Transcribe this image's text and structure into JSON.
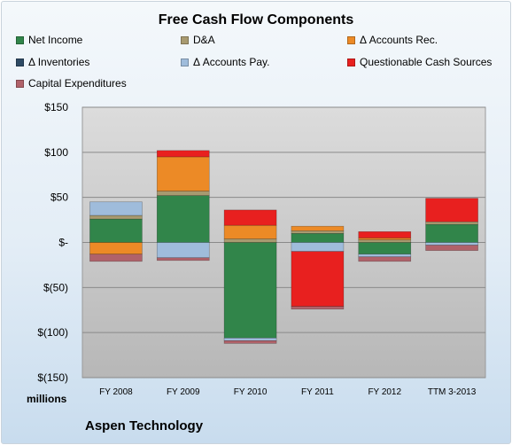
{
  "chart_data": {
    "type": "bar",
    "stacked": true,
    "title": "Free Cash Flow Components",
    "units_label": "millions",
    "company": "Aspen Technology",
    "categories": [
      "FY 2008",
      "FY 2009",
      "FY 2010",
      "FY 2011",
      "FY 2012",
      "TTM 3-2013"
    ],
    "ylim": [
      -150,
      150
    ],
    "yticks": [
      150,
      100,
      50,
      0,
      -50,
      -100,
      -150
    ],
    "ytick_labels": [
      "$150",
      "$100",
      "$50",
      "$-",
      "$(50)",
      "$(100)",
      "$(150)"
    ],
    "grid": true,
    "legend_position": "top",
    "series": [
      {
        "name": "Net Income",
        "color": "#31854a",
        "values": [
          26,
          52,
          -106,
          10,
          -13,
          20
        ]
      },
      {
        "name": "D&A",
        "color": "#a89a70",
        "values": [
          4,
          5,
          4,
          3,
          3,
          3
        ]
      },
      {
        "name": "Δ Accounts Rec.",
        "color": "#ec8a26",
        "values": [
          -13,
          38,
          15,
          5,
          2,
          0
        ]
      },
      {
        "name": "Δ Inventories",
        "color": "#2e4a64",
        "values": [
          0,
          0,
          0,
          0,
          0,
          0
        ]
      },
      {
        "name": "Δ Accounts Pay.",
        "color": "#9fbcdb",
        "values": [
          15,
          -17,
          -3,
          -10,
          -3,
          -3
        ]
      },
      {
        "name": "Questionable Cash Sources",
        "color": "#e8201f",
        "values": [
          0,
          7,
          17,
          -61,
          7,
          26
        ]
      },
      {
        "name": "Capital Expenditures",
        "color": "#b0626a",
        "values": [
          -8,
          -3,
          -3,
          -3,
          -5,
          -6
        ]
      }
    ]
  }
}
